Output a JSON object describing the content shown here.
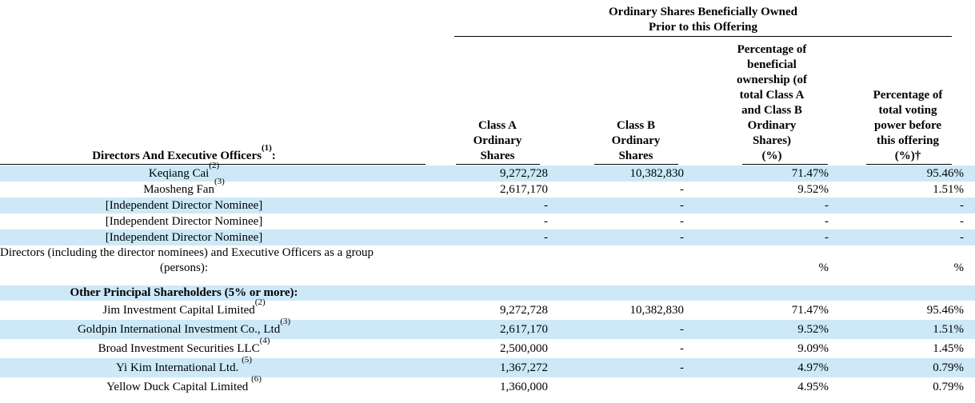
{
  "document": {
    "kind": "beneficial-ownership-table"
  },
  "colors": {
    "row_highlight": "#CDE9F8",
    "text": "#000000",
    "rule": "#000000"
  },
  "table": {
    "group_header": {
      "line1": "Ordinary Shares Beneficially Owned",
      "line2": "Prior to this Offering"
    },
    "columns": {
      "col1_header": {
        "text": "Directors And Executive Officers",
        "sup": "(1)",
        "suffix": ":"
      },
      "class_a": "Class A\nOrdinary\nShares",
      "class_b": "Class B\nOrdinary\nShares",
      "pct_ownership": "Percentage of\nbeneficial\nownership (of\ntotal Class A\nand Class B\nOrdinary\nShares)\n(%)",
      "pct_voting": "Percentage of\ntotal voting\npower before\nthis offering\n(%)†"
    },
    "rows": [
      {
        "type": "standard",
        "shaded": true,
        "bold": false,
        "name": "Keqiang Cai",
        "sup": "(2)",
        "class_a": "9,272,728",
        "class_b": "10,382,830",
        "pct_ownership": "71.47%",
        "pct_voting": "95.46%"
      },
      {
        "type": "standard",
        "shaded": false,
        "bold": false,
        "name": "Maosheng Fan",
        "sup": "(3)",
        "class_a": "2,617,170",
        "class_b": "-",
        "pct_ownership": "9.52%",
        "pct_voting": "1.51%"
      },
      {
        "type": "standard",
        "shaded": true,
        "bold": false,
        "name": "[Independent Director Nominee]",
        "sup": "",
        "class_a": "-",
        "class_b": "-",
        "pct_ownership": "-",
        "pct_voting": "-"
      },
      {
        "type": "standard",
        "shaded": false,
        "bold": false,
        "name": "[Independent Director Nominee]",
        "sup": "",
        "class_a": "-",
        "class_b": "-",
        "pct_ownership": "-",
        "pct_voting": "-"
      },
      {
        "type": "standard",
        "shaded": true,
        "bold": false,
        "name": "[Independent Director Nominee]",
        "sup": "",
        "class_a": "-",
        "class_b": "-",
        "pct_ownership": "-",
        "pct_voting": "-"
      },
      {
        "type": "group",
        "shaded": false,
        "bold": false,
        "name_line1": "Directors (including the director nominees) and Executive Officers as a group",
        "name_line2": "(persons):",
        "class_a": "",
        "class_b": "",
        "pct_ownership": "%",
        "pct_voting": "%"
      },
      {
        "type": "section",
        "shaded": true,
        "bold": true,
        "name": "Other Principal Shareholders (5% or more):",
        "sup": "",
        "class_a": "",
        "class_b": "",
        "pct_ownership": "",
        "pct_voting": ""
      },
      {
        "type": "standard",
        "shaded": false,
        "bold": false,
        "name": "Jim Investment Capital Limited",
        "sup": "(2)",
        "class_a": "9,272,728",
        "class_b": "10,382,830",
        "pct_ownership": "71.47%",
        "pct_voting": "95.46%"
      },
      {
        "type": "standard",
        "shaded": true,
        "bold": false,
        "name": "Goldpin International Investment Co., Ltd",
        "sup": "(3)",
        "class_a": "2,617,170",
        "class_b": "-",
        "pct_ownership": "9.52%",
        "pct_voting": "1.51%"
      },
      {
        "type": "standard",
        "shaded": false,
        "bold": false,
        "name": "Broad Investment Securities LLC",
        "sup": "(4)",
        "class_a": "2,500,000",
        "class_b": "-",
        "pct_ownership": "9.09%",
        "pct_voting": "1.45%"
      },
      {
        "type": "standard",
        "shaded": true,
        "bold": false,
        "name": "Yi Kim International Ltd. ",
        "sup": "(5)",
        "class_a": "1,367,272",
        "class_b": "-",
        "pct_ownership": "4.97%",
        "pct_voting": "0.79%"
      },
      {
        "type": "standard",
        "shaded": false,
        "bold": false,
        "name": "Yellow Duck Capital Limited ",
        "sup": "(6)",
        "class_a": "1,360,000",
        "class_b": "",
        "pct_ownership": "4.95%",
        "pct_voting": "0.79%"
      }
    ]
  }
}
